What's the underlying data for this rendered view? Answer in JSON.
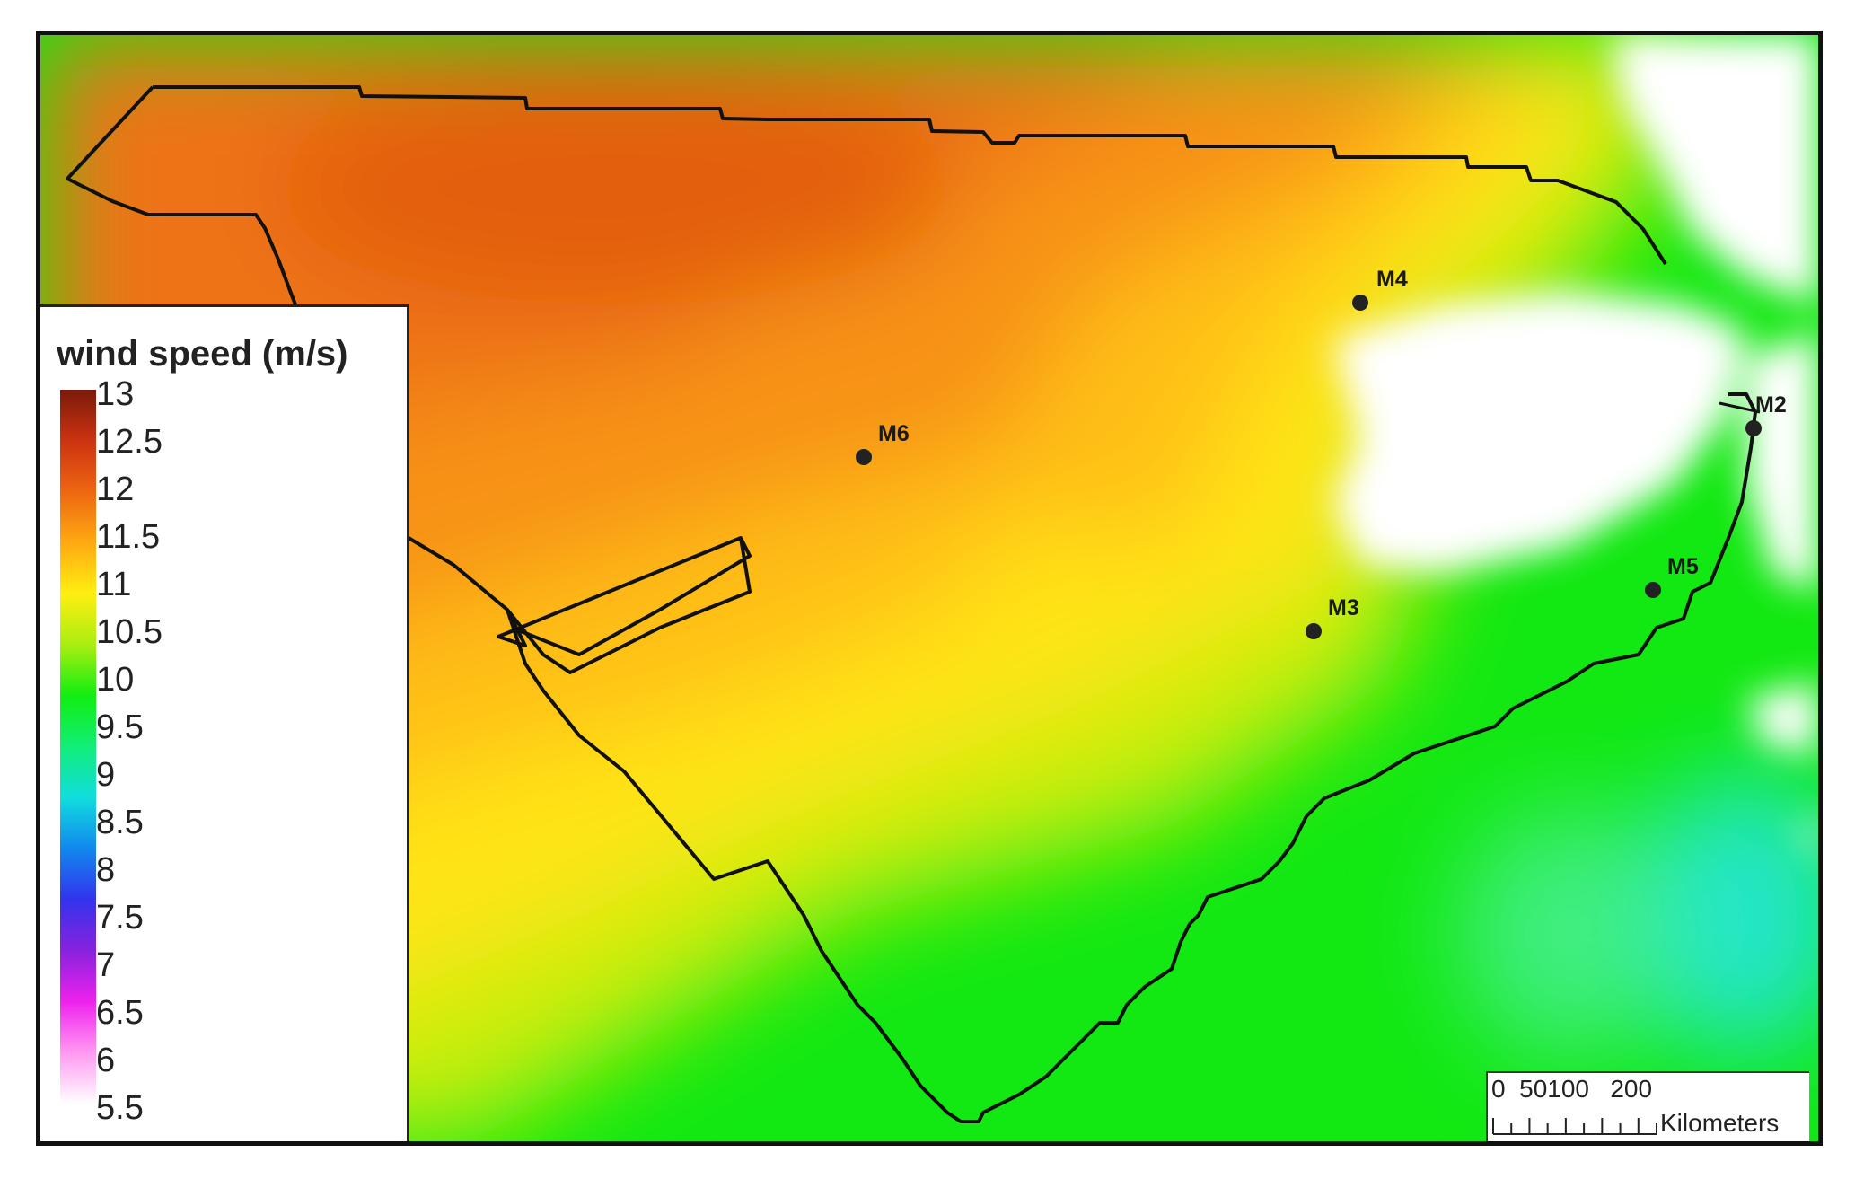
{
  "legend": {
    "title": "wind speed (m/s)",
    "ticks": [
      "13",
      "12.5",
      "12",
      "11.5",
      "11",
      "10.5",
      "10",
      "9.5",
      "9",
      "8.5",
      "8",
      "7.5",
      "7",
      "6.5",
      "6",
      "5.5"
    ],
    "colors": [
      "#ffffff",
      "#ff99f0",
      "#ee22ee",
      "#8822dd",
      "#3333ee",
      "#1188ee",
      "#11dddd",
      "#11ee77",
      "#11ee11",
      "#aaee11",
      "#ffee11",
      "#ffaa11",
      "#ee6611",
      "#cc3311",
      "#7a1a0a"
    ]
  },
  "stations": [
    {
      "label": "M6",
      "icon": "station-dot-icon"
    },
    {
      "label": "M4",
      "icon": "station-dot-icon"
    },
    {
      "label": "M3",
      "icon": "station-dot-icon"
    },
    {
      "label": "M5",
      "icon": "station-dot-icon"
    },
    {
      "label": "M2",
      "icon": "station-dot-icon"
    }
  ],
  "scale_bar": {
    "numbers": "0  50100   200",
    "units": "Kilometers"
  },
  "colors": {
    "land": "#ffffff",
    "high_wind": "#ee6611",
    "mid_wind": "#ffee11",
    "low_wind": "#11ee11",
    "boundary": "#111111"
  }
}
